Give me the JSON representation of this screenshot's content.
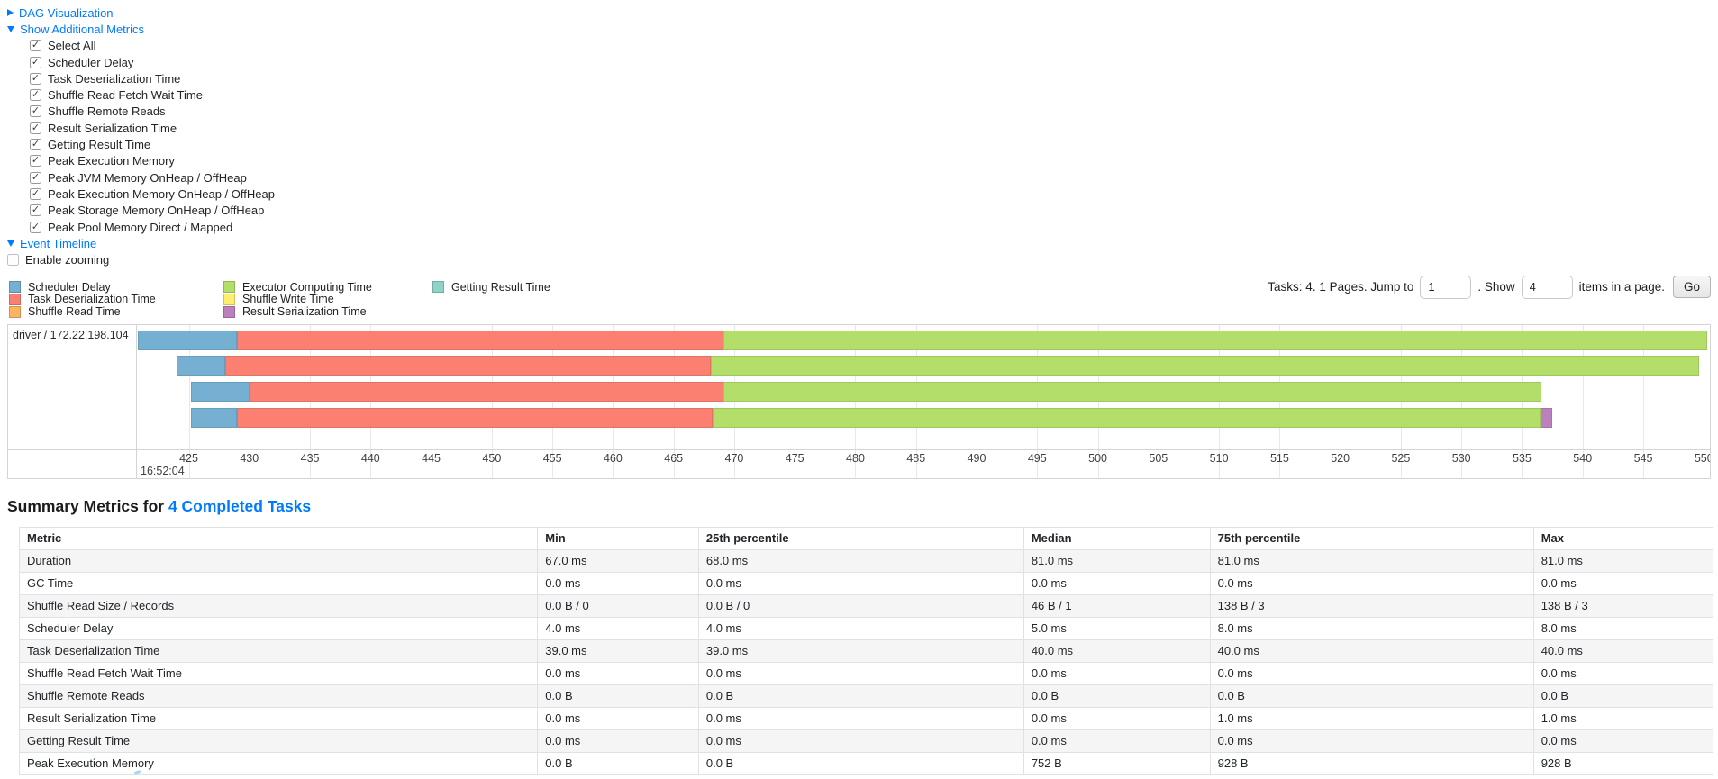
{
  "colors": {
    "link": "#007bff",
    "scheduler_delay": "#75AFD2",
    "deserialization": "#FB8072",
    "shuffle_read": "#FDB462",
    "executor_computing": "#B3DE69",
    "shuffle_write": "#FFED6F",
    "result_serialization": "#BC80BD",
    "getting_result": "#8DD3C7",
    "table_stripe": "#f5f5f5",
    "border": "#dee2e6"
  },
  "toggles": {
    "dag": {
      "label": "DAG Visualization",
      "state": "collapsed"
    },
    "additional_metrics": {
      "label": "Show Additional Metrics",
      "state": "expanded"
    },
    "event_timeline": {
      "label": "Event Timeline",
      "state": "expanded"
    }
  },
  "metric_checkboxes": [
    {
      "label": "Select All",
      "checked": true
    },
    {
      "label": "Scheduler Delay",
      "checked": true
    },
    {
      "label": "Task Deserialization Time",
      "checked": true
    },
    {
      "label": "Shuffle Read Fetch Wait Time",
      "checked": true
    },
    {
      "label": "Shuffle Remote Reads",
      "checked": true
    },
    {
      "label": "Result Serialization Time",
      "checked": true
    },
    {
      "label": "Getting Result Time",
      "checked": true
    },
    {
      "label": "Peak Execution Memory",
      "checked": true
    },
    {
      "label": "Peak JVM Memory OnHeap / OffHeap",
      "checked": true
    },
    {
      "label": "Peak Execution Memory OnHeap / OffHeap",
      "checked": true
    },
    {
      "label": "Peak Storage Memory OnHeap / OffHeap",
      "checked": true
    },
    {
      "label": "Peak Pool Memory Direct / Mapped",
      "checked": true
    }
  ],
  "enable_zooming": {
    "label": "Enable zooming",
    "checked": false
  },
  "legend": {
    "columns": [
      [
        {
          "label": "Scheduler Delay",
          "color_key": "scheduler_delay"
        },
        {
          "label": "Task Deserialization Time",
          "color_key": "deserialization"
        },
        {
          "label": "Shuffle Read Time",
          "color_key": "shuffle_read"
        }
      ],
      [
        {
          "label": "Executor Computing Time",
          "color_key": "executor_computing"
        },
        {
          "label": "Shuffle Write Time",
          "color_key": "shuffle_write"
        },
        {
          "label": "Result Serialization Time",
          "color_key": "result_serialization"
        }
      ],
      [
        {
          "label": "Getting Result Time",
          "color_key": "getting_result"
        }
      ]
    ]
  },
  "pagination": {
    "prefix": "Tasks: 4. 1 Pages. Jump to",
    "jump_value": "1",
    "mid": ". Show",
    "show_value": "4",
    "suffix": "items in a page.",
    "go_label": "Go"
  },
  "chart_data": {
    "type": "timeline",
    "group_label": "driver / 172.22.198.104",
    "axis": {
      "min": 420.8,
      "max": 550.5,
      "ticks": [
        425,
        430,
        435,
        440,
        445,
        450,
        455,
        460,
        465,
        470,
        475,
        480,
        485,
        490,
        495,
        500,
        505,
        510,
        515,
        520,
        525,
        530,
        535,
        540,
        545,
        550
      ],
      "major_label": "16:52:04",
      "unit": "ms within second"
    },
    "tasks": [
      {
        "segments": [
          {
            "type": "scheduler_delay",
            "start": 420.8,
            "end": 429.0
          },
          {
            "type": "deserialization",
            "start": 429.0,
            "end": 469.1
          },
          {
            "type": "executor_computing",
            "start": 469.1,
            "end": 550.3
          }
        ]
      },
      {
        "segments": [
          {
            "type": "scheduler_delay",
            "start": 424.0,
            "end": 428.0
          },
          {
            "type": "deserialization",
            "start": 428.0,
            "end": 468.1
          },
          {
            "type": "executor_computing",
            "start": 468.1,
            "end": 549.6
          }
        ]
      },
      {
        "segments": [
          {
            "type": "scheduler_delay",
            "start": 425.2,
            "end": 430.0
          },
          {
            "type": "deserialization",
            "start": 430.0,
            "end": 469.1
          },
          {
            "type": "executor_computing",
            "start": 469.1,
            "end": 536.6
          }
        ]
      },
      {
        "segments": [
          {
            "type": "scheduler_delay",
            "start": 425.2,
            "end": 429.0
          },
          {
            "type": "deserialization",
            "start": 429.0,
            "end": 468.2
          },
          {
            "type": "executor_computing",
            "start": 468.2,
            "end": 536.5
          },
          {
            "type": "result_serialization",
            "start": 536.5,
            "end": 537.5
          }
        ]
      }
    ]
  },
  "summary": {
    "title_prefix": "Summary Metrics for ",
    "title_link": "4 Completed Tasks",
    "table": {
      "headers": [
        "Metric",
        "Min",
        "25th percentile",
        "Median",
        "75th percentile",
        "Max"
      ],
      "col_widths": [
        "30.6%",
        "9.5%",
        "19.2%",
        "11.0%",
        "19.1%",
        "10.6%"
      ],
      "rows": [
        [
          "Duration",
          "67.0 ms",
          "68.0 ms",
          "81.0 ms",
          "81.0 ms",
          "81.0 ms"
        ],
        [
          "GC Time",
          "0.0 ms",
          "0.0 ms",
          "0.0 ms",
          "0.0 ms",
          "0.0 ms"
        ],
        [
          "Shuffle Read Size / Records",
          "0.0 B / 0",
          "0.0 B / 0",
          "46 B / 1",
          "138 B / 3",
          "138 B / 3"
        ],
        [
          "Scheduler Delay",
          "4.0 ms",
          "4.0 ms",
          "5.0 ms",
          "8.0 ms",
          "8.0 ms"
        ],
        [
          "Task Deserialization Time",
          "39.0 ms",
          "39.0 ms",
          "40.0 ms",
          "40.0 ms",
          "40.0 ms"
        ],
        [
          "Shuffle Read Fetch Wait Time",
          "0.0 ms",
          "0.0 ms",
          "0.0 ms",
          "0.0 ms",
          "0.0 ms"
        ],
        [
          "Shuffle Remote Reads",
          "0.0 B",
          "0.0 B",
          "0.0 B",
          "0.0 B",
          "0.0 B"
        ],
        [
          "Result Serialization Time",
          "0.0 ms",
          "0.0 ms",
          "0.0 ms",
          "1.0 ms",
          "1.0 ms"
        ],
        [
          "Getting Result Time",
          "0.0 ms",
          "0.0 ms",
          "0.0 ms",
          "0.0 ms",
          "0.0 ms"
        ],
        [
          "Peak Execution Memory",
          "0.0 B",
          "0.0 B",
          "752 B",
          "928 B",
          "928 B"
        ]
      ]
    }
  }
}
